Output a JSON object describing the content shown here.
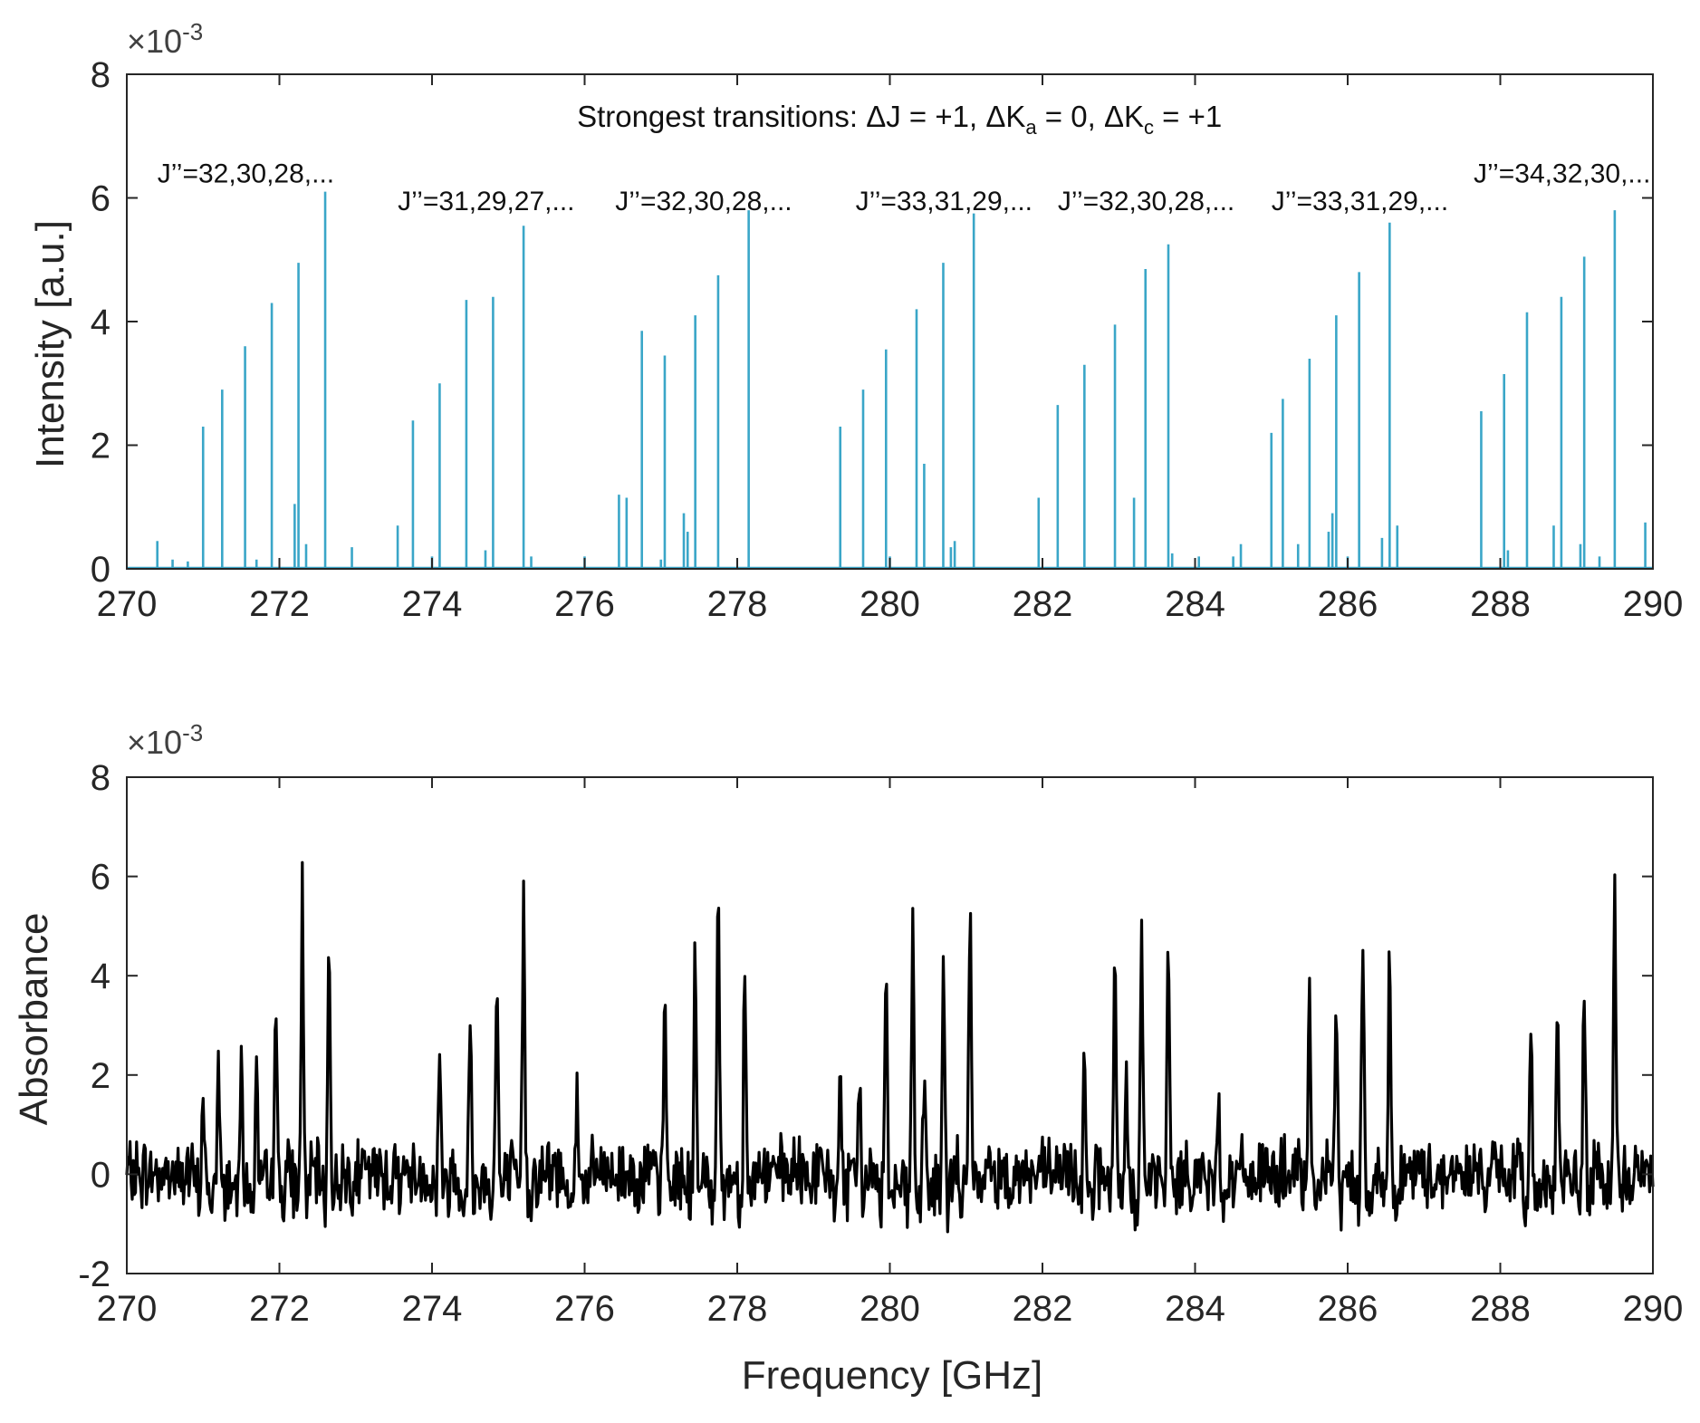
{
  "chart_data": [
    {
      "type": "bar",
      "name": "simulated-spectrum",
      "xlabel": "",
      "ylabel": "Intensity [a.u.]",
      "exponent_label": "×10",
      "exponent_power": "-3",
      "xlim": [
        270,
        290
      ],
      "ylim": [
        0,
        8
      ],
      "x_ticks": [
        270,
        272,
        274,
        276,
        278,
        280,
        282,
        284,
        286,
        288,
        290
      ],
      "y_ticks": [
        0,
        2,
        4,
        6,
        8
      ],
      "grid": false,
      "color": "#3aa6c8",
      "lines": [
        {
          "x": 270.4,
          "y": 0.45
        },
        {
          "x": 270.6,
          "y": 0.15
        },
        {
          "x": 270.8,
          "y": 0.12
        },
        {
          "x": 271.0,
          "y": 2.3
        },
        {
          "x": 271.25,
          "y": 2.9
        },
        {
          "x": 271.55,
          "y": 3.6
        },
        {
          "x": 271.7,
          "y": 0.15
        },
        {
          "x": 271.9,
          "y": 4.3
        },
        {
          "x": 272.2,
          "y": 1.05
        },
        {
          "x": 272.25,
          "y": 4.95
        },
        {
          "x": 272.35,
          "y": 0.4
        },
        {
          "x": 272.6,
          "y": 6.1
        },
        {
          "x": 272.95,
          "y": 0.35
        },
        {
          "x": 273.55,
          "y": 0.7
        },
        {
          "x": 273.75,
          "y": 2.4
        },
        {
          "x": 274.0,
          "y": 0.2
        },
        {
          "x": 274.1,
          "y": 3.0
        },
        {
          "x": 274.45,
          "y": 4.35
        },
        {
          "x": 274.7,
          "y": 0.3
        },
        {
          "x": 274.8,
          "y": 4.4
        },
        {
          "x": 275.2,
          "y": 5.55
        },
        {
          "x": 275.3,
          "y": 0.2
        },
        {
          "x": 276.0,
          "y": 0.2
        },
        {
          "x": 276.45,
          "y": 1.2
        },
        {
          "x": 276.55,
          "y": 1.15
        },
        {
          "x": 276.75,
          "y": 3.85
        },
        {
          "x": 277.0,
          "y": 0.15
        },
        {
          "x": 277.05,
          "y": 3.45
        },
        {
          "x": 277.3,
          "y": 0.9
        },
        {
          "x": 277.35,
          "y": 0.6
        },
        {
          "x": 277.45,
          "y": 4.1
        },
        {
          "x": 277.75,
          "y": 4.75
        },
        {
          "x": 278.15,
          "y": 5.8
        },
        {
          "x": 279.35,
          "y": 2.3
        },
        {
          "x": 279.65,
          "y": 2.9
        },
        {
          "x": 279.95,
          "y": 3.55
        },
        {
          "x": 280.0,
          "y": 0.2
        },
        {
          "x": 280.35,
          "y": 4.2
        },
        {
          "x": 280.45,
          "y": 1.7
        },
        {
          "x": 280.7,
          "y": 4.95
        },
        {
          "x": 280.8,
          "y": 0.35
        },
        {
          "x": 280.85,
          "y": 0.45
        },
        {
          "x": 281.1,
          "y": 5.75
        },
        {
          "x": 281.95,
          "y": 1.15
        },
        {
          "x": 282.2,
          "y": 2.65
        },
        {
          "x": 282.55,
          "y": 3.3
        },
        {
          "x": 282.95,
          "y": 3.95
        },
        {
          "x": 283.2,
          "y": 1.15
        },
        {
          "x": 283.35,
          "y": 4.85
        },
        {
          "x": 283.65,
          "y": 5.25
        },
        {
          "x": 283.7,
          "y": 0.25
        },
        {
          "x": 284.05,
          "y": 0.2
        },
        {
          "x": 284.5,
          "y": 0.2
        },
        {
          "x": 284.6,
          "y": 0.4
        },
        {
          "x": 285.0,
          "y": 2.2
        },
        {
          "x": 285.15,
          "y": 2.75
        },
        {
          "x": 285.35,
          "y": 0.4
        },
        {
          "x": 285.5,
          "y": 3.4
        },
        {
          "x": 285.75,
          "y": 0.6
        },
        {
          "x": 285.8,
          "y": 0.9
        },
        {
          "x": 285.85,
          "y": 4.1
        },
        {
          "x": 286.0,
          "y": 0.2
        },
        {
          "x": 286.15,
          "y": 4.8
        },
        {
          "x": 286.45,
          "y": 0.5
        },
        {
          "x": 286.55,
          "y": 5.6
        },
        {
          "x": 286.65,
          "y": 0.7
        },
        {
          "x": 287.75,
          "y": 2.55
        },
        {
          "x": 288.05,
          "y": 3.15
        },
        {
          "x": 288.1,
          "y": 0.3
        },
        {
          "x": 288.35,
          "y": 4.15
        },
        {
          "x": 288.7,
          "y": 0.7
        },
        {
          "x": 288.8,
          "y": 4.4
        },
        {
          "x": 289.05,
          "y": 0.4
        },
        {
          "x": 289.1,
          "y": 5.05
        },
        {
          "x": 289.3,
          "y": 0.2
        },
        {
          "x": 289.5,
          "y": 5.8
        },
        {
          "x": 289.9,
          "y": 0.75
        }
      ],
      "annotations": [
        {
          "text": "Strongest transitions: ΔJ = +1, ΔK",
          "x": 275.9,
          "y": 7.15,
          "kind": "main"
        },
        {
          "text": "J’’=32,30,28,...",
          "x": 270.4,
          "y": 6.25,
          "kind": "series"
        },
        {
          "text": "J’’=31,29,27,...",
          "x": 273.55,
          "y": 5.8,
          "kind": "series"
        },
        {
          "text": "J’’=32,30,28,...",
          "x": 276.4,
          "y": 5.8,
          "kind": "series"
        },
        {
          "text": "J’’=33,31,29,...",
          "x": 279.55,
          "y": 5.8,
          "kind": "series"
        },
        {
          "text": "J’’=32,30,28,...",
          "x": 282.2,
          "y": 5.8,
          "kind": "series"
        },
        {
          "text": "J’’=33,31,29,...",
          "x": 285.0,
          "y": 5.8,
          "kind": "series"
        },
        {
          "text": "J’’=34,32,30,...",
          "x": 287.65,
          "y": 6.25,
          "kind": "series"
        }
      ],
      "main_annotation_parts": {
        "sub_a": "a",
        "mid": " = 0, ΔK",
        "sub_c": "c",
        "end": " = +1"
      }
    },
    {
      "type": "line",
      "name": "measured-spectrum",
      "xlabel": "Frequency [GHz]",
      "ylabel": "Absorbance",
      "exponent_label": "×10",
      "exponent_power": "-3",
      "xlim": [
        270,
        290
      ],
      "ylim": [
        -2,
        8
      ],
      "x_ticks": [
        270,
        272,
        274,
        276,
        278,
        280,
        282,
        284,
        286,
        288,
        290
      ],
      "y_ticks": [
        -2,
        0,
        2,
        4,
        6,
        8
      ],
      "grid": false,
      "color": "#000000",
      "noise_amplitude": 0.55,
      "peaks": [
        {
          "x": 271.0,
          "y": 1.7
        },
        {
          "x": 271.2,
          "y": 2.3
        },
        {
          "x": 271.5,
          "y": 3.1
        },
        {
          "x": 271.7,
          "y": 2.05
        },
        {
          "x": 271.95,
          "y": 4.0
        },
        {
          "x": 272.3,
          "y": 5.7
        },
        {
          "x": 272.65,
          "y": 4.8
        },
        {
          "x": 274.1,
          "y": 2.7
        },
        {
          "x": 274.5,
          "y": 3.1
        },
        {
          "x": 274.85,
          "y": 4.1
        },
        {
          "x": 275.2,
          "y": 5.85
        },
        {
          "x": 275.9,
          "y": 1.6
        },
        {
          "x": 277.05,
          "y": 3.75
        },
        {
          "x": 277.45,
          "y": 4.5
        },
        {
          "x": 277.75,
          "y": 6.3
        },
        {
          "x": 278.1,
          "y": 4.5
        },
        {
          "x": 279.35,
          "y": 2.25
        },
        {
          "x": 279.6,
          "y": 2.2
        },
        {
          "x": 279.95,
          "y": 4.15
        },
        {
          "x": 280.3,
          "y": 5.25
        },
        {
          "x": 280.45,
          "y": 1.95
        },
        {
          "x": 280.7,
          "y": 4.05
        },
        {
          "x": 281.05,
          "y": 5.5
        },
        {
          "x": 282.55,
          "y": 2.9
        },
        {
          "x": 282.95,
          "y": 4.15
        },
        {
          "x": 283.1,
          "y": 2.1
        },
        {
          "x": 283.3,
          "y": 4.95
        },
        {
          "x": 283.65,
          "y": 4.8
        },
        {
          "x": 284.3,
          "y": 1.9
        },
        {
          "x": 285.5,
          "y": 3.5
        },
        {
          "x": 285.85,
          "y": 3.65
        },
        {
          "x": 286.2,
          "y": 4.95
        },
        {
          "x": 286.55,
          "y": 4.4
        },
        {
          "x": 288.4,
          "y": 2.95
        },
        {
          "x": 288.75,
          "y": 3.85
        },
        {
          "x": 289.1,
          "y": 3.65
        },
        {
          "x": 289.5,
          "y": 5.4
        }
      ]
    }
  ]
}
